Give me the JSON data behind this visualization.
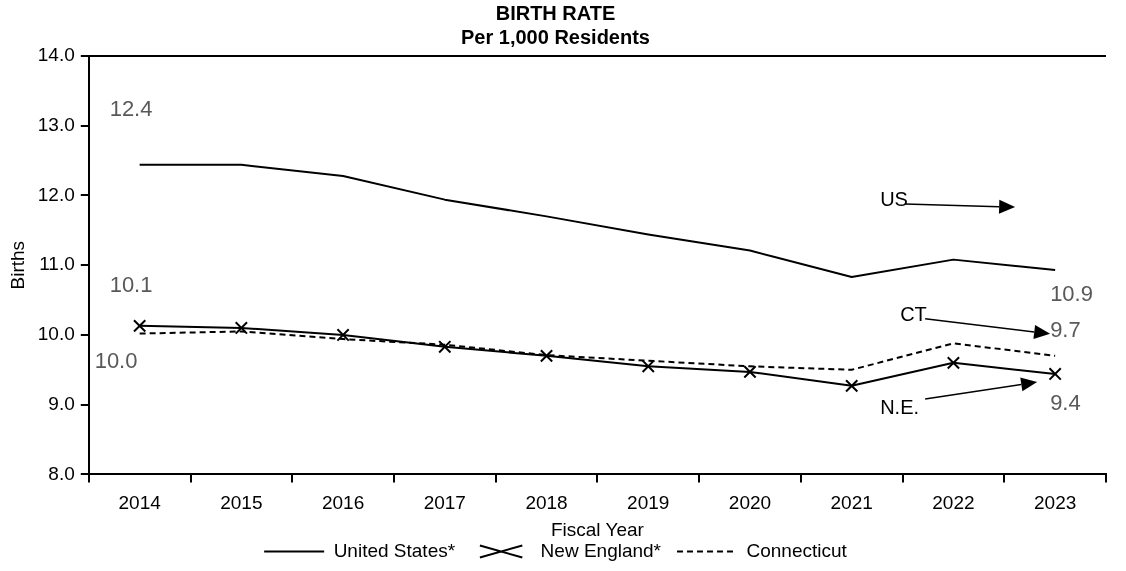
{
  "chart_data": {
    "type": "line",
    "title": "BIRTH RATE",
    "subtitle": "Per 1,000 Residents",
    "xlabel": "Fiscal Year",
    "ylabel": "Births",
    "categories": [
      "2014",
      "2015",
      "2016",
      "2017",
      "2018",
      "2019",
      "2020",
      "2021",
      "2022",
      "2023"
    ],
    "series": [
      {
        "name": "United States*",
        "color": "#000000",
        "marker": "none",
        "line_style": "solid",
        "values": [
          12.44,
          12.44,
          12.28,
          11.94,
          11.7,
          11.44,
          11.21,
          10.83,
          11.08,
          10.93
        ],
        "value_labels": [
          "12.4",
          null,
          null,
          null,
          null,
          null,
          null,
          null,
          null,
          "10.9"
        ]
      },
      {
        "name": "New England*",
        "color": "#000000",
        "marker": "cross",
        "line_style": "solid",
        "values": [
          10.13,
          10.1,
          10.0,
          9.83,
          9.7,
          9.55,
          9.47,
          9.27,
          9.6,
          9.44
        ],
        "value_labels": [
          "10.1",
          null,
          null,
          null,
          null,
          null,
          null,
          null,
          null,
          "9.4"
        ]
      },
      {
        "name": "Connecticut",
        "color": "#000000",
        "marker": "none",
        "line_style": "dashed",
        "values": [
          10.02,
          10.05,
          9.94,
          9.86,
          9.71,
          9.63,
          9.55,
          9.5,
          9.88,
          9.7
        ],
        "value_labels": [
          "10.0",
          null,
          null,
          null,
          null,
          null,
          null,
          null,
          null,
          "9.7"
        ]
      }
    ],
    "ylim": [
      8,
      14
    ],
    "yticks": [
      {
        "value": 8,
        "label": "8.0"
      },
      {
        "value": 9,
        "label": "9.0"
      },
      {
        "value": 10,
        "label": "10.0"
      },
      {
        "value": 11,
        "label": "11.0"
      },
      {
        "value": 12,
        "label": "12.0"
      },
      {
        "value": 13,
        "label": "13.0"
      },
      {
        "value": 14,
        "label": "14.0"
      }
    ],
    "grid": false,
    "legend": "bottom",
    "annotations": [
      "US",
      "CT",
      "N.E."
    ]
  }
}
